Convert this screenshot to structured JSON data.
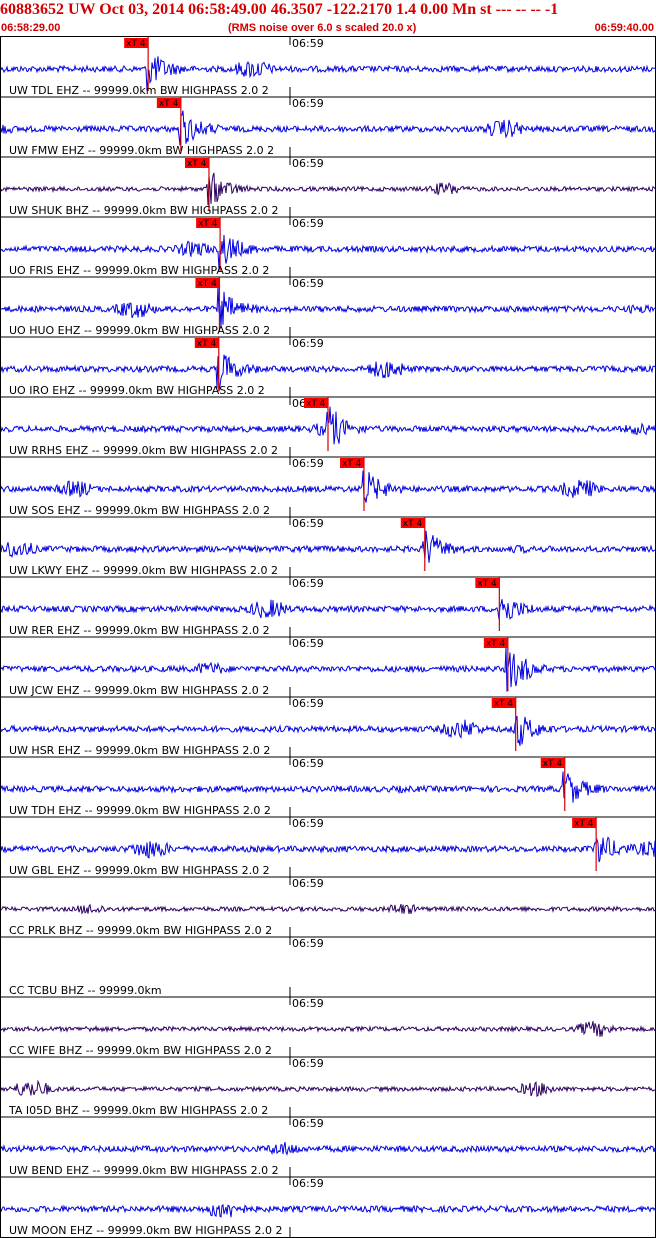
{
  "header": {
    "title": "60883652 UW Oct 03, 2014 06:58:49.00   46.3507 -122.2170  1.4 0.00 Mn st --- -- --  -1",
    "start_time": "06:58:29.00",
    "rms_note": "(RMS noise over 6.0 s scaled 20.0 x)",
    "end_time": "06:59:40.00"
  },
  "colors": {
    "header_text": "#d40000",
    "trace_blue": "#0000e0",
    "trace_dark": "#2a0060",
    "pick_box": "#ff0000",
    "pick_line": "#d40000"
  },
  "minute_label": "06:59",
  "pick_label": "xT 4",
  "traces": [
    {
      "label": "UW TDL EHZ -- 99999.0km BW  HIGHPASS  2.0  2",
      "pick": 0.225,
      "color": "blue"
    },
    {
      "label": "UW FMW EHZ -- 99999.0km BW  HIGHPASS  2.0  2",
      "pick": 0.275,
      "color": "blue"
    },
    {
      "label": "UW SHUK BHZ -- 99999.0km BW  HIGHPASS  2.0  2",
      "pick": 0.318,
      "color": "dark"
    },
    {
      "label": "UO FRIS EHZ -- 99999.0km BW  HIGHPASS  2.0  2",
      "pick": 0.335,
      "color": "blue"
    },
    {
      "label": "UO HUO EHZ -- 99999.0km BW  HIGHPASS  2.0  2",
      "pick": 0.334,
      "color": "blue"
    },
    {
      "label": "UO IRO EHZ -- 99999.0km BW  HIGHPASS  2.0  2",
      "pick": 0.333,
      "color": "blue"
    },
    {
      "label": "UW RRHS EHZ -- 99999.0km BW  HIGHPASS  2.0  2",
      "pick": 0.5,
      "color": "blue"
    },
    {
      "label": "UW SOS EHZ -- 99999.0km BW  HIGHPASS  2.0  2",
      "pick": 0.555,
      "color": "blue"
    },
    {
      "label": "UW LKWY EHZ -- 99999.0km BW  HIGHPASS  2.0  2",
      "pick": 0.648,
      "color": "blue"
    },
    {
      "label": "UW RER EHZ -- 99999.0km BW  HIGHPASS  2.0  2",
      "pick": 0.762,
      "color": "blue"
    },
    {
      "label": "UW JCW EHZ -- 99999.0km BW  HIGHPASS  2.0  2",
      "pick": 0.775,
      "color": "blue"
    },
    {
      "label": "UW HSR EHZ -- 99999.0km BW  HIGHPASS  2.0  2",
      "pick": 0.787,
      "color": "blue"
    },
    {
      "label": "UW TDH EHZ -- 99999.0km BW  HIGHPASS  2.0  2",
      "pick": 0.862,
      "color": "blue"
    },
    {
      "label": "UW GBL EHZ -- 99999.0km BW  HIGHPASS  2.0  2",
      "pick": 0.91,
      "color": "blue"
    },
    {
      "label": "CC PRLK BHZ -- 99999.0km BW  HIGHPASS  2.0  2",
      "pick": null,
      "color": "dark"
    },
    {
      "label": "CC TCBU BHZ -- 99999.0km",
      "pick": null,
      "color": "none"
    },
    {
      "label": "CC WIFE BHZ -- 99999.0km BW  HIGHPASS  2.0  2",
      "pick": null,
      "color": "dark"
    },
    {
      "label": "TA I05D BHZ -- 99999.0km BW  HIGHPASS  2.0  2",
      "pick": null,
      "color": "dark"
    },
    {
      "label": "UW BEND EHZ -- 99999.0km BW  HIGHPASS  2.0  2",
      "pick": null,
      "color": "blue"
    },
    {
      "label": "UW MOON EHZ -- 99999.0km BW  HIGHPASS  2.0  2",
      "pick": null,
      "color": "blue"
    }
  ]
}
